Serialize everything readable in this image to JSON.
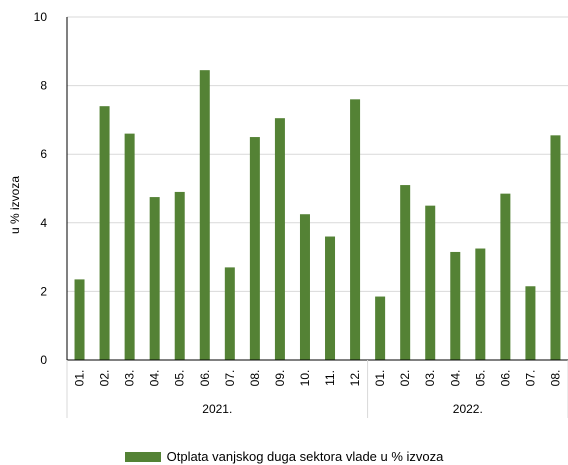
{
  "chart_data": {
    "type": "bar",
    "ylabel": "u % izvoza",
    "ylim": [
      0,
      10
    ],
    "yticks": [
      0,
      2,
      4,
      6,
      8,
      10
    ],
    "grid": true,
    "legend_position": "bottom",
    "categories": [
      "01.",
      "02.",
      "03.",
      "04.",
      "05.",
      "06.",
      "07.",
      "08.",
      "09.",
      "10.",
      "11.",
      "12.",
      "01.",
      "02.",
      "03.",
      "04.",
      "05.",
      "06.",
      "07.",
      "08."
    ],
    "groups": [
      {
        "label": "2021.",
        "count": 12
      },
      {
        "label": "2022.",
        "count": 8
      }
    ],
    "series": [
      {
        "name": "Otplata vanjskog duga sektora vlade u % izvoza",
        "color": "#548235",
        "values": [
          2.35,
          7.4,
          6.6,
          4.75,
          4.9,
          8.45,
          2.7,
          6.5,
          7.05,
          4.25,
          3.6,
          7.6,
          1.85,
          5.1,
          4.5,
          3.15,
          3.25,
          4.85,
          2.15,
          6.55
        ]
      }
    ]
  }
}
